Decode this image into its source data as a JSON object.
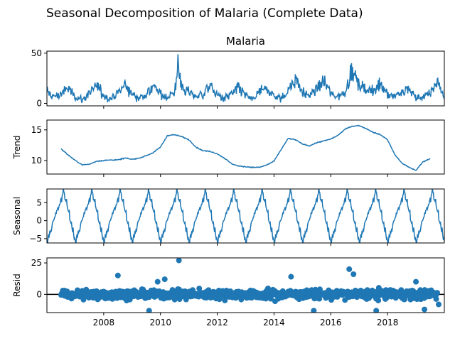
{
  "figure_title": "Seasonal Decomposition of Malaria (Complete Data)",
  "colors": {
    "series": "#1f77b4",
    "axis": "#000000",
    "background": "#ffffff"
  },
  "chart_data": [
    {
      "type": "line",
      "title": "Malaria",
      "ylabel": "",
      "xlabel": "",
      "xlim": [
        2006.0,
        2020.0
      ],
      "ylim": [
        -2.5,
        52
      ],
      "yticks": [
        0,
        50
      ],
      "show_xtick_labels": false,
      "series": [
        {
          "x": [
            2006.0,
            2006.25,
            2006.5,
            2006.75,
            2007.0,
            2007.25,
            2007.5,
            2007.75,
            2008.0,
            2008.25,
            2008.5,
            2008.75,
            2009.0,
            2009.25,
            2009.5,
            2009.75,
            2010.0,
            2010.25,
            2010.5,
            2010.62,
            2010.75,
            2011.0,
            2011.25,
            2011.5,
            2011.75,
            2012.0,
            2012.25,
            2012.5,
            2012.75,
            2013.0,
            2013.25,
            2013.5,
            2013.75,
            2014.0,
            2014.25,
            2014.5,
            2014.75,
            2015.0,
            2015.25,
            2015.5,
            2015.75,
            2016.0,
            2016.25,
            2016.5,
            2016.75,
            2017.0,
            2017.25,
            2017.5,
            2017.75,
            2018.0,
            2018.25,
            2018.5,
            2018.75,
            2019.0,
            2019.25,
            2019.5,
            2019.75,
            2020.0
          ],
          "y": [
            15,
            8,
            12,
            20,
            9,
            4,
            14,
            22,
            10,
            6,
            13,
            24,
            11,
            7,
            12,
            21,
            12,
            8,
            14,
            49,
            22,
            14,
            9,
            12,
            22,
            10,
            6,
            12,
            20,
            10,
            5,
            14,
            19,
            9,
            6,
            16,
            33,
            13,
            10,
            18,
            30,
            12,
            9,
            15,
            42,
            22,
            18,
            14,
            27,
            12,
            10,
            13,
            20,
            7,
            8,
            12,
            28,
            9
          ]
        }
      ]
    },
    {
      "type": "line",
      "title": "",
      "ylabel": "Trend",
      "xlabel": "",
      "xlim": [
        2006.0,
        2020.0
      ],
      "ylim": [
        7.8,
        16.6
      ],
      "yticks": [
        10,
        15
      ],
      "show_xtick_labels": false,
      "series": [
        {
          "x": [
            2006.5,
            2006.75,
            2007.0,
            2007.25,
            2007.5,
            2007.75,
            2008.0,
            2008.25,
            2008.5,
            2008.75,
            2009.0,
            2009.25,
            2009.5,
            2009.75,
            2010.0,
            2010.25,
            2010.5,
            2010.75,
            2011.0,
            2011.25,
            2011.5,
            2011.75,
            2012.0,
            2012.25,
            2012.5,
            2012.75,
            2013.0,
            2013.25,
            2013.5,
            2013.75,
            2014.0,
            2014.25,
            2014.5,
            2014.75,
            2015.0,
            2015.25,
            2015.5,
            2015.75,
            2016.0,
            2016.25,
            2016.5,
            2016.75,
            2017.0,
            2017.25,
            2017.5,
            2017.75,
            2018.0,
            2018.25,
            2018.5,
            2018.75,
            2019.0,
            2019.25,
            2019.5
          ],
          "y": [
            11.9,
            10.9,
            10.0,
            9.3,
            9.4,
            9.9,
            10.0,
            10.1,
            10.1,
            10.4,
            10.2,
            10.4,
            10.8,
            11.3,
            12.2,
            14.1,
            14.2,
            13.9,
            13.4,
            12.2,
            11.6,
            11.5,
            11.1,
            10.4,
            9.5,
            9.1,
            9.0,
            8.9,
            8.9,
            9.3,
            9.9,
            11.8,
            13.6,
            13.4,
            12.7,
            12.4,
            12.9,
            13.2,
            13.5,
            14.1,
            15.1,
            15.6,
            15.7,
            15.2,
            14.6,
            14.2,
            13.4,
            11.0,
            9.6,
            8.9,
            8.4,
            9.8,
            10.3
          ]
        }
      ]
    },
    {
      "type": "line",
      "title": "",
      "ylabel": "Seasonal",
      "xlabel": "",
      "xlim": [
        2006.0,
        2020.0
      ],
      "ylim": [
        -6.2,
        8.8
      ],
      "yticks": [
        -5,
        0,
        5
      ],
      "show_xtick_labels": false,
      "period_years": 1.0,
      "amplitude": {
        "min": -5.5,
        "max": 8.0
      },
      "peak_phase": 0.6
    },
    {
      "type": "scatter",
      "title": "",
      "ylabel": "Resid",
      "xlabel": "",
      "xlim": [
        2006.0,
        2020.0
      ],
      "ylim": [
        -14.5,
        29
      ],
      "yticks": [
        0,
        25
      ],
      "xticks": [
        "2008",
        "2010",
        "2012",
        "2014",
        "2016",
        "2018"
      ],
      "show_xtick_labels": true,
      "zero_line": true,
      "outliers": {
        "x": [
          2008.5,
          2009.6,
          2009.9,
          2010.15,
          2010.65,
          2014.6,
          2015.4,
          2016.65,
          2016.8,
          2017.6,
          2019.0,
          2019.3,
          2019.8
        ],
        "y": [
          15,
          -13,
          10,
          12,
          27,
          14,
          -13,
          20,
          16,
          -13,
          10,
          -12,
          -8
        ]
      }
    }
  ]
}
